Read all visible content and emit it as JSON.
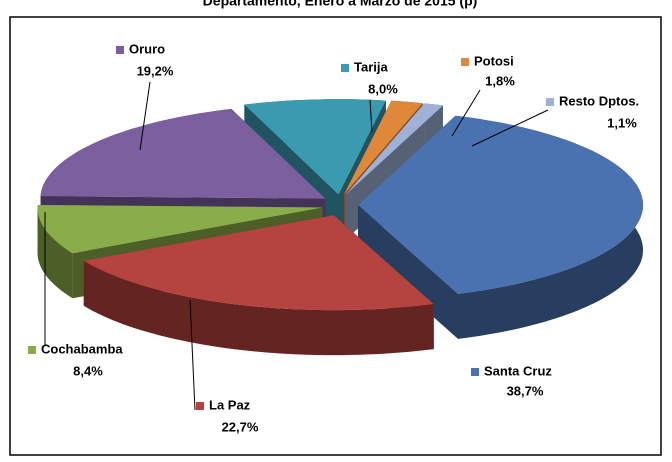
{
  "chart_data": {
    "type": "pie",
    "title": "Departamento, Enero a Marzo de 2015 (p)",
    "categories": [
      "Santa Cruz",
      "La Paz",
      "Cochabamba",
      "Oruro",
      "Tarija",
      "Potosi",
      "Resto Dptos."
    ],
    "values": [
      38.7,
      22.7,
      8.4,
      19.2,
      8.0,
      1.8,
      1.1
    ],
    "value_labels": [
      "38,7%",
      "22,7%",
      "8,4%",
      "19,2%",
      "8,0%",
      "1,8%",
      "1,1%"
    ],
    "colors": [
      "#4a72b0",
      "#b5433f",
      "#8aad4a",
      "#7b5f9f",
      "#3a9ab0",
      "#e0873a",
      "#9fb1d6"
    ]
  }
}
